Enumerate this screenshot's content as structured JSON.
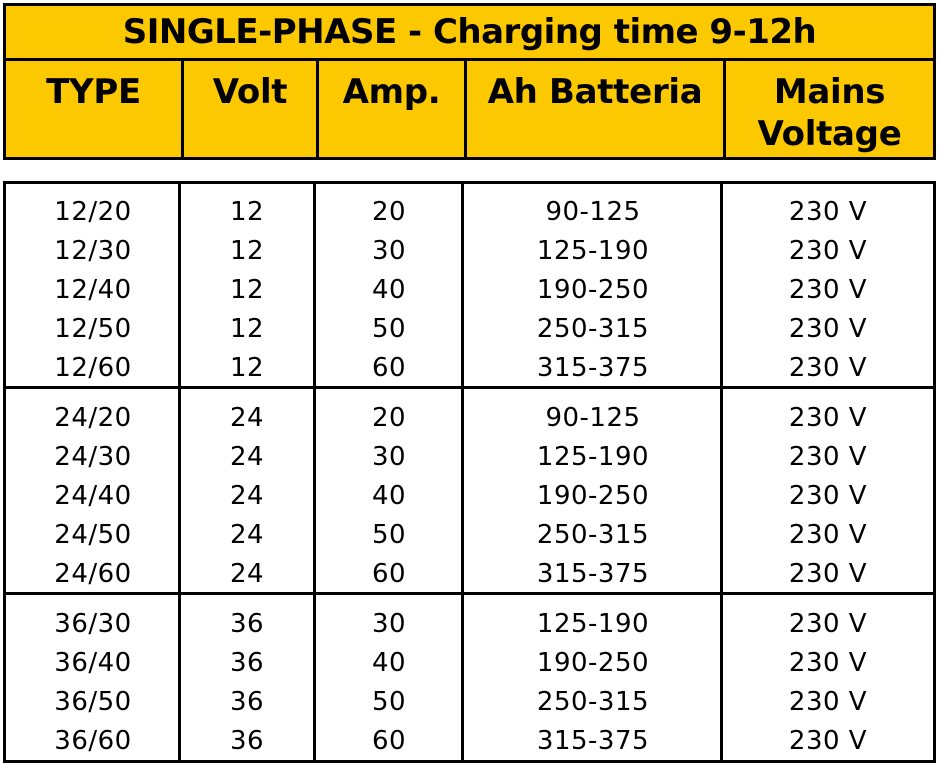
{
  "table": {
    "title": "SINGLE-PHASE - Charging time 9-12h",
    "headers": [
      "TYPE",
      "Volt",
      "Amp.",
      "Ah Batteria",
      "Mains Voltage"
    ],
    "groups": [
      [
        [
          "12/20",
          "12",
          "20",
          "90-125",
          "230 V"
        ],
        [
          "12/30",
          "12",
          "30",
          "125-190",
          "230 V"
        ],
        [
          "12/40",
          "12",
          "40",
          "190-250",
          "230 V"
        ],
        [
          "12/50",
          "12",
          "50",
          "250-315",
          "230 V"
        ],
        [
          "12/60",
          "12",
          "60",
          "315-375",
          "230 V"
        ]
      ],
      [
        [
          "24/20",
          "24",
          "20",
          "90-125",
          "230 V"
        ],
        [
          "24/30",
          "24",
          "30",
          "125-190",
          "230 V"
        ],
        [
          "24/40",
          "24",
          "40",
          "190-250",
          "230 V"
        ],
        [
          "24/50",
          "24",
          "50",
          "250-315",
          "230 V"
        ],
        [
          "24/60",
          "24",
          "60",
          "315-375",
          "230 V"
        ]
      ],
      [
        [
          "36/30",
          "36",
          "30",
          "125-190",
          "230 V"
        ],
        [
          "36/40",
          "36",
          "40",
          "190-250",
          "230 V"
        ],
        [
          "36/50",
          "36",
          "50",
          "250-315",
          "230 V"
        ],
        [
          "36/60",
          "36",
          "60",
          "315-375",
          "230 V"
        ]
      ]
    ]
  },
  "colors": {
    "header_bg": "#fcc800",
    "border": "#000000"
  }
}
